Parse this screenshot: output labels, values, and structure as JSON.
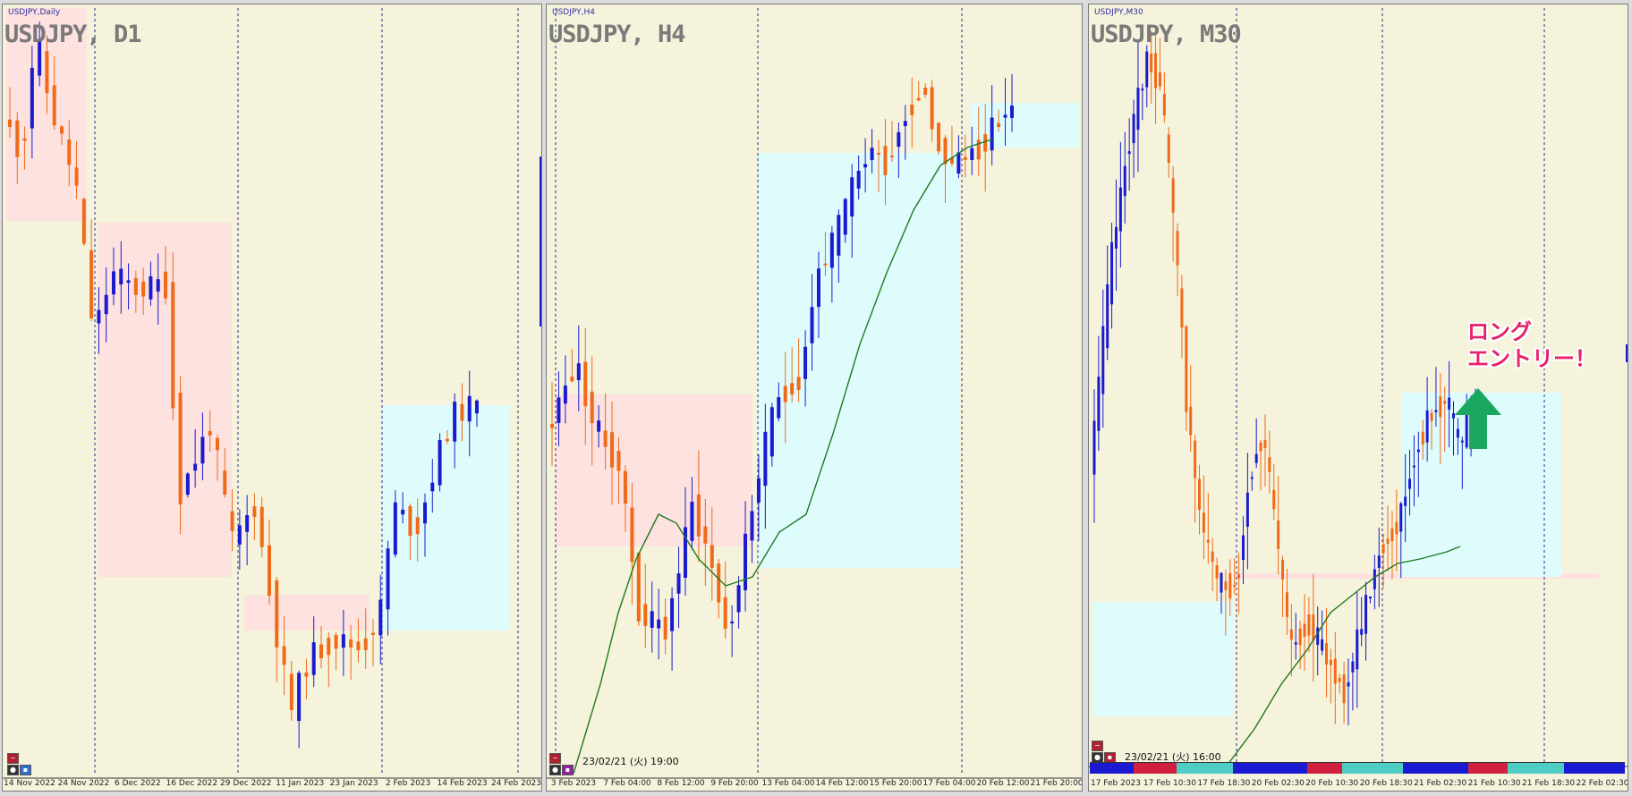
{
  "colors": {
    "background": "#f5f3dc",
    "bull_candle": "#1a1ad0",
    "bear_candle": "#f06a1a",
    "pink_zone": "#fde2e0",
    "cyan_zone": "#dffcfd",
    "moving_average": "#1f7a1f",
    "annotation": "#e8206a",
    "arrow": "#1aa860"
  },
  "panels": [
    {
      "mini_title": "USDJPY,Daily",
      "title": "USDJPY, D1",
      "date_labels": [
        "14 Nov 2022",
        "24 Nov 2022",
        "6 Dec 2022",
        "16 Dec 2022",
        "29 Dec 2022",
        "11 Jan 2023",
        "23 Jan 2023",
        "2 Feb 2023",
        "14 Feb 2023",
        "24 Feb 2023"
      ]
    },
    {
      "mini_title": "USDJPY,H4",
      "title": "USDJPY, H4",
      "current_time": "23/02/21 (火) 19:00",
      "date_labels": [
        "3 Feb 2023",
        "7 Feb 04:00",
        "8 Feb 12:00",
        "9 Feb 20:00",
        "13 Feb 04:00",
        "14 Feb 12:00",
        "15 Feb 20:00",
        "17 Feb 04:00",
        "20 Feb 12:00",
        "21 Feb 20:00"
      ]
    },
    {
      "mini_title": "USDJPY,M30",
      "title": "USDJPY, M30",
      "current_time": "23/02/21 (火) 16:00",
      "date_labels": [
        "17 Feb 2023",
        "17 Feb 10:30",
        "17 Feb 18:30",
        "20 Feb 02:30",
        "20 Feb 10:30",
        "20 Feb 18:30",
        "21 Feb 02:30",
        "21 Feb 10:30",
        "21 Feb 18:30",
        "22 Feb 02:30"
      ],
      "session_bar": [
        {
          "color": "#1a1ad0",
          "weight": 1
        },
        {
          "color": "#d02040",
          "weight": 1
        },
        {
          "color": "#4ecdc4",
          "weight": 1.3
        },
        {
          "color": "#1a1ad0",
          "weight": 1.7
        },
        {
          "color": "#d02040",
          "weight": 0.8
        },
        {
          "color": "#4ecdc4",
          "weight": 1.4
        },
        {
          "color": "#1a1ad0",
          "weight": 1.5
        },
        {
          "color": "#d02040",
          "weight": 0.9
        },
        {
          "color": "#4ecdc4",
          "weight": 1.3
        },
        {
          "color": "#1a1ad0",
          "weight": 1.4
        }
      ]
    }
  ],
  "annotation": {
    "line1": "ロング",
    "line2": "エントリー！"
  },
  "arrow_icon": "up-arrow-icon"
}
